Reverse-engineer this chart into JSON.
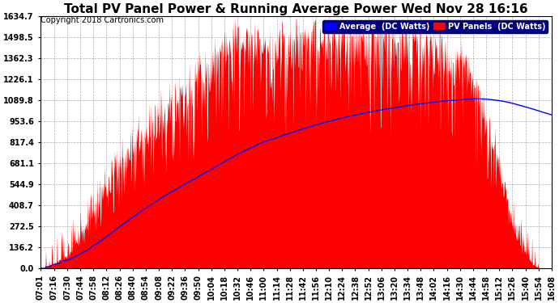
{
  "title": "Total PV Panel Power & Running Average Power Wed Nov 28 16:16",
  "copyright": "Copyright 2018 Cartronics.com",
  "yticks": [
    0.0,
    136.2,
    272.5,
    408.7,
    544.9,
    681.1,
    817.4,
    953.6,
    1089.8,
    1226.1,
    1362.3,
    1498.5,
    1634.7
  ],
  "ymax": 1634.7,
  "ymin": 0.0,
  "legend_avg_label": "Average  (DC Watts)",
  "legend_pv_label": "PV Panels  (DC Watts)",
  "avg_color": "#0000ff",
  "pv_color": "#ff0000",
  "bg_color": "#ffffff",
  "grid_color": "#999999",
  "title_fontsize": 11,
  "copyright_fontsize": 7,
  "tick_fontsize": 7
}
